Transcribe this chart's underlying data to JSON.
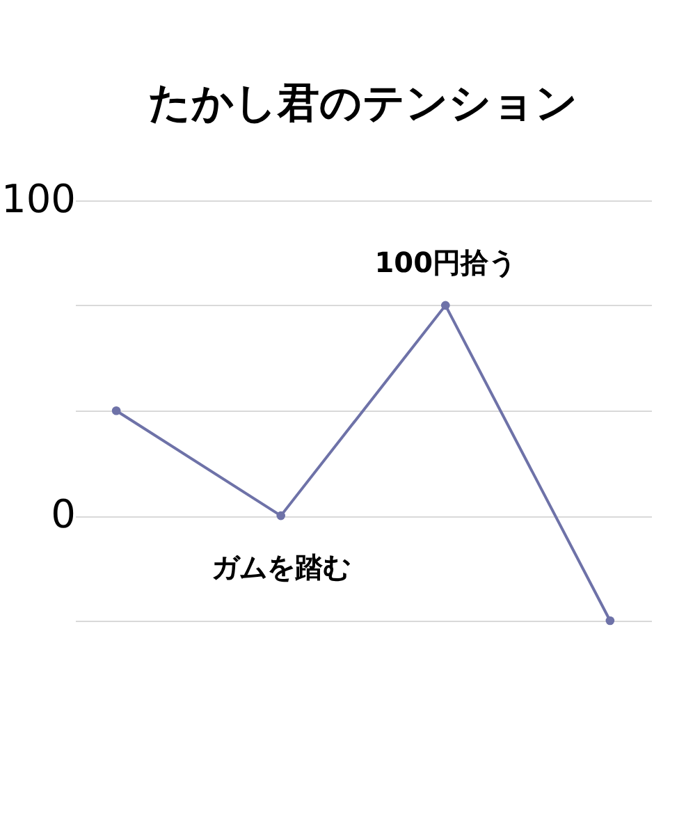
{
  "chart_data": {
    "type": "line",
    "title": "たかし君のテンション",
    "categories": [
      null,
      null,
      null,
      null
    ],
    "series": [
      {
        "color": "#6e72a8",
        "values": [
          33.3,
          0,
          66.7,
          -33.3
        ]
      }
    ],
    "ylim": [
      -33.3,
      100
    ],
    "yticks": [
      {
        "value": -33.3,
        "label": null
      },
      0,
      {
        "value": 33.3,
        "label": null
      },
      {
        "value": 66.7,
        "label": null
      },
      100
    ],
    "grid": "y",
    "marker": "circle",
    "line_style": "solid",
    "annotations": [
      {
        "text": "100円拾う",
        "y": 66.7
      },
      {
        "text": "ガムを踏む",
        "y": 0
      }
    ]
  }
}
